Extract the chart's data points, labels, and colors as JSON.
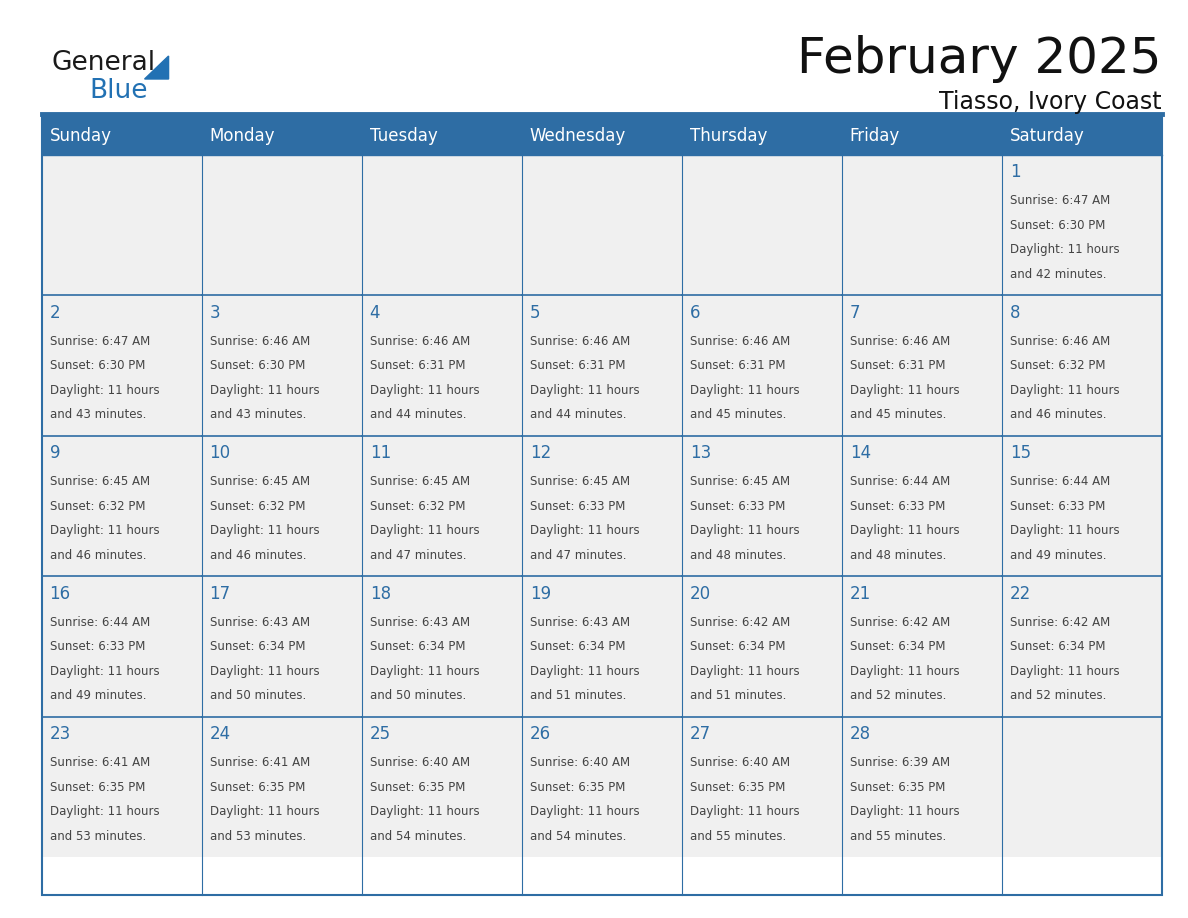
{
  "title": "February 2025",
  "subtitle": "Tiasso, Ivory Coast",
  "days_of_week": [
    "Sunday",
    "Monday",
    "Tuesday",
    "Wednesday",
    "Thursday",
    "Friday",
    "Saturday"
  ],
  "header_bg": "#2E6DA4",
  "header_text": "#FFFFFF",
  "cell_bg": "#F0F0F0",
  "border_color": "#2E6DA4",
  "day_num_color": "#2E6DA4",
  "text_color": "#444444",
  "logo_black": "#1a1a1a",
  "logo_blue": "#2271B3",
  "calendar": [
    [
      null,
      null,
      null,
      null,
      null,
      null,
      1
    ],
    [
      2,
      3,
      4,
      5,
      6,
      7,
      8
    ],
    [
      9,
      10,
      11,
      12,
      13,
      14,
      15
    ],
    [
      16,
      17,
      18,
      19,
      20,
      21,
      22
    ],
    [
      23,
      24,
      25,
      26,
      27,
      28,
      null
    ]
  ],
  "sunrise": {
    "1": "6:47 AM",
    "2": "6:47 AM",
    "3": "6:46 AM",
    "4": "6:46 AM",
    "5": "6:46 AM",
    "6": "6:46 AM",
    "7": "6:46 AM",
    "8": "6:46 AM",
    "9": "6:45 AM",
    "10": "6:45 AM",
    "11": "6:45 AM",
    "12": "6:45 AM",
    "13": "6:45 AM",
    "14": "6:44 AM",
    "15": "6:44 AM",
    "16": "6:44 AM",
    "17": "6:43 AM",
    "18": "6:43 AM",
    "19": "6:43 AM",
    "20": "6:42 AM",
    "21": "6:42 AM",
    "22": "6:42 AM",
    "23": "6:41 AM",
    "24": "6:41 AM",
    "25": "6:40 AM",
    "26": "6:40 AM",
    "27": "6:40 AM",
    "28": "6:39 AM"
  },
  "sunset": {
    "1": "6:30 PM",
    "2": "6:30 PM",
    "3": "6:30 PM",
    "4": "6:31 PM",
    "5": "6:31 PM",
    "6": "6:31 PM",
    "7": "6:31 PM",
    "8": "6:32 PM",
    "9": "6:32 PM",
    "10": "6:32 PM",
    "11": "6:32 PM",
    "12": "6:33 PM",
    "13": "6:33 PM",
    "14": "6:33 PM",
    "15": "6:33 PM",
    "16": "6:33 PM",
    "17": "6:34 PM",
    "18": "6:34 PM",
    "19": "6:34 PM",
    "20": "6:34 PM",
    "21": "6:34 PM",
    "22": "6:34 PM",
    "23": "6:35 PM",
    "24": "6:35 PM",
    "25": "6:35 PM",
    "26": "6:35 PM",
    "27": "6:35 PM",
    "28": "6:35 PM"
  },
  "daylight_hours": {
    "1": "11",
    "2": "11",
    "3": "11",
    "4": "11",
    "5": "11",
    "6": "11",
    "7": "11",
    "8": "11",
    "9": "11",
    "10": "11",
    "11": "11",
    "12": "11",
    "13": "11",
    "14": "11",
    "15": "11",
    "16": "11",
    "17": "11",
    "18": "11",
    "19": "11",
    "20": "11",
    "21": "11",
    "22": "11",
    "23": "11",
    "24": "11",
    "25": "11",
    "26": "11",
    "27": "11",
    "28": "11"
  },
  "daylight_minutes": {
    "1": "42",
    "2": "43",
    "3": "43",
    "4": "44",
    "5": "44",
    "6": "45",
    "7": "45",
    "8": "46",
    "9": "46",
    "10": "46",
    "11": "47",
    "12": "47",
    "13": "48",
    "14": "48",
    "15": "49",
    "16": "49",
    "17": "50",
    "18": "50",
    "19": "51",
    "20": "51",
    "21": "52",
    "22": "52",
    "23": "53",
    "24": "53",
    "25": "54",
    "26": "54",
    "27": "55",
    "28": "55"
  },
  "fig_width": 11.88,
  "fig_height": 9.18,
  "dpi": 100
}
